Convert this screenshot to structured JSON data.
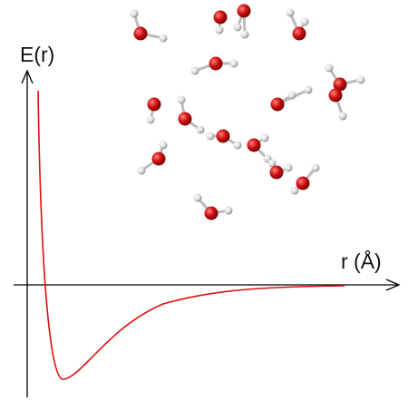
{
  "y_axis_label": "E(r)",
  "x_axis_label": "r (Å)"
}
